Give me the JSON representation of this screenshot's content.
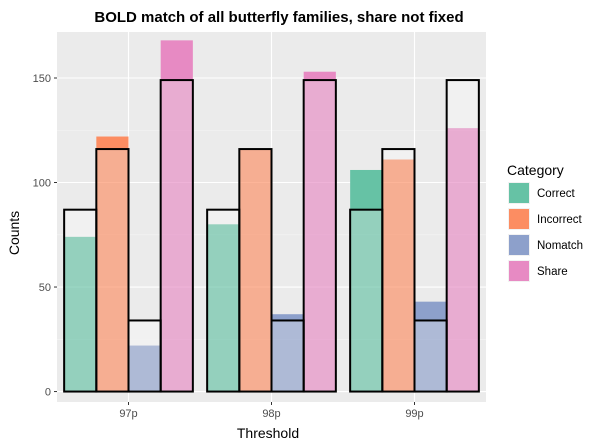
{
  "chart_data": {
    "type": "bar",
    "title": "BOLD match of all butterfly families, share not fixed",
    "xlabel": "Threshold",
    "ylabel": "Counts",
    "categories": [
      "97p",
      "98p",
      "99p"
    ],
    "ylim": [
      -5,
      172
    ],
    "yticks": [
      0,
      50,
      100,
      150
    ],
    "grid": true,
    "legend": {
      "title": "Category",
      "position": "right"
    },
    "series": [
      {
        "name": "Correct",
        "color": "#66c2a5",
        "values": [
          74,
          80,
          106
        ],
        "outline": [
          87,
          87,
          87
        ]
      },
      {
        "name": "Incorrect",
        "color": "#fc8d62",
        "values": [
          122,
          116,
          111
        ],
        "outline": [
          116,
          116,
          116
        ]
      },
      {
        "name": "Nomatch",
        "color": "#8da0cb",
        "values": [
          22,
          37,
          43
        ],
        "outline": [
          34,
          34,
          34
        ]
      },
      {
        "name": "Share",
        "color": "#e78ac3",
        "values": [
          168,
          153,
          126
        ],
        "outline": [
          149,
          149,
          149
        ]
      }
    ]
  }
}
